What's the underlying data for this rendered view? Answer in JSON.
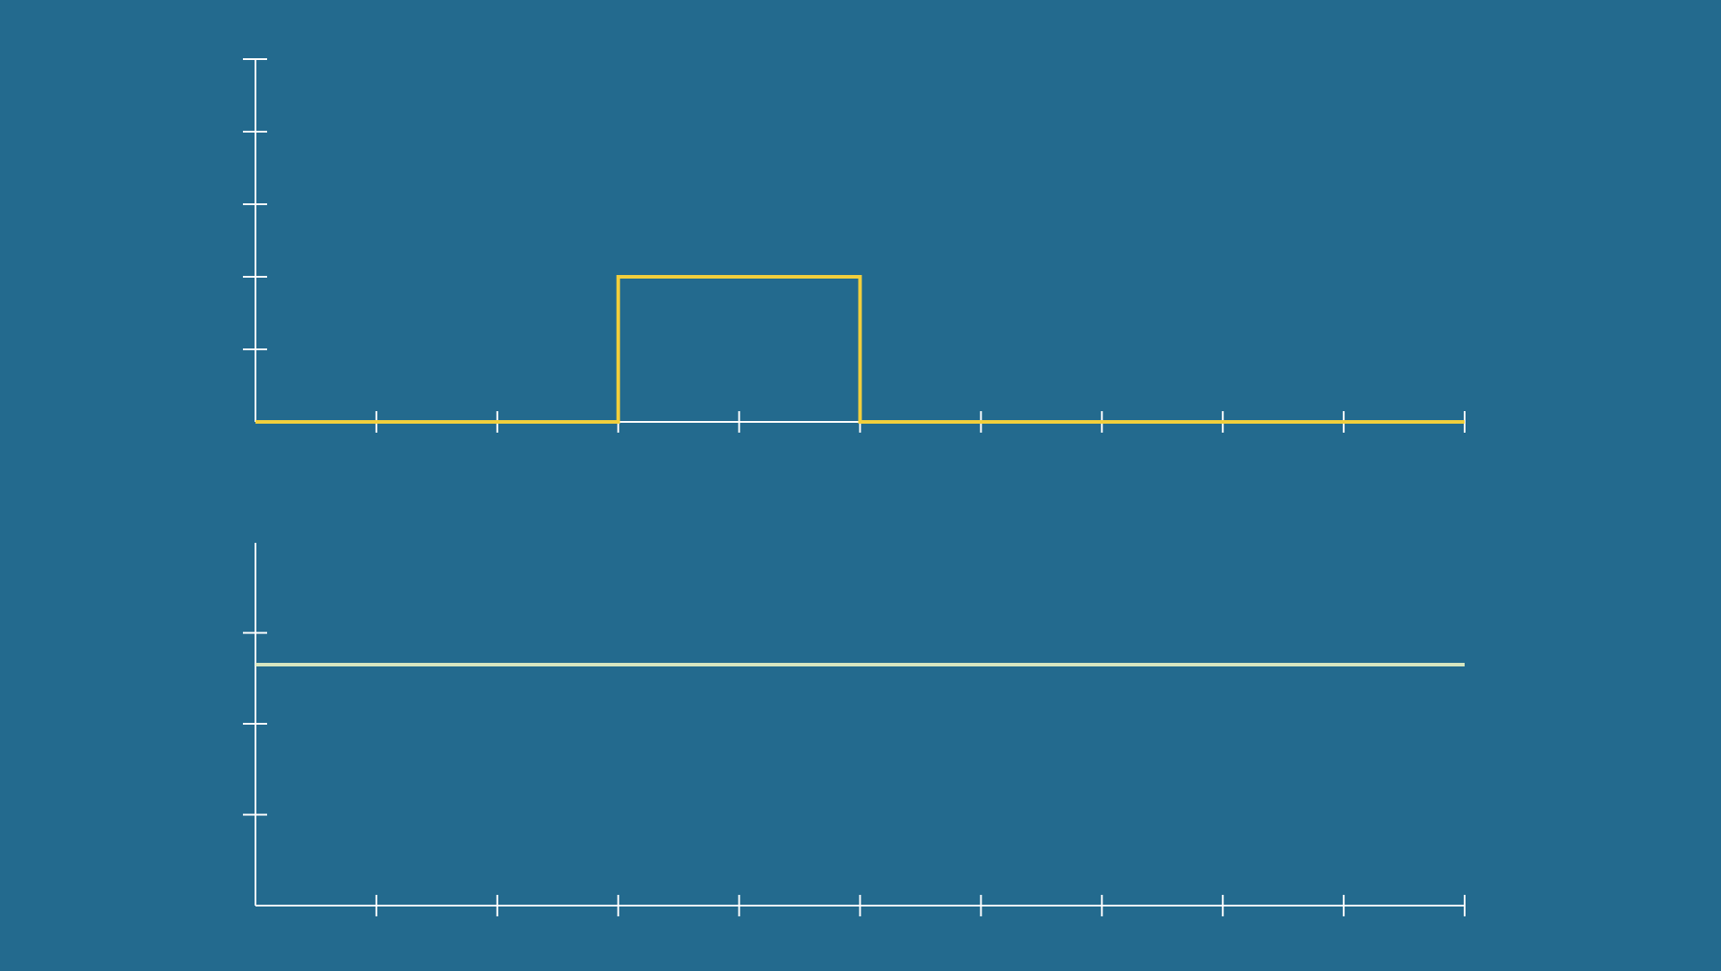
{
  "colors": {
    "background": "#236a8e",
    "axes": "#ffffff",
    "top_series": "#f2cf3c",
    "bottom_series": "#d6e6c0"
  },
  "chart_data": [
    {
      "type": "line",
      "title": "",
      "xlabel": "",
      "ylabel": "",
      "xlim": [
        0,
        10
      ],
      "ylim": [
        0,
        5
      ],
      "x_ticks": [
        1,
        2,
        3,
        4,
        5,
        6,
        7,
        8,
        9,
        10
      ],
      "y_ticks": [
        1,
        2,
        3,
        4,
        5
      ],
      "grid": false,
      "series": [
        {
          "x": [
            0,
            3,
            3,
            5,
            5,
            10
          ],
          "y": [
            0,
            0,
            2,
            2,
            0,
            0
          ],
          "color": "#f2cf3c"
        }
      ]
    },
    {
      "type": "line",
      "title": "",
      "xlabel": "",
      "ylabel": "",
      "xlim": [
        0,
        10
      ],
      "ylim": [
        0,
        4
      ],
      "x_ticks": [
        1,
        2,
        3,
        4,
        5,
        6,
        7,
        8,
        9,
        10
      ],
      "y_ticks": [
        1,
        2,
        3
      ],
      "grid": false,
      "series": [
        {
          "x": [
            0,
            10
          ],
          "y": [
            2.65,
            2.65
          ],
          "color": "#d6e6c0"
        }
      ]
    }
  ]
}
